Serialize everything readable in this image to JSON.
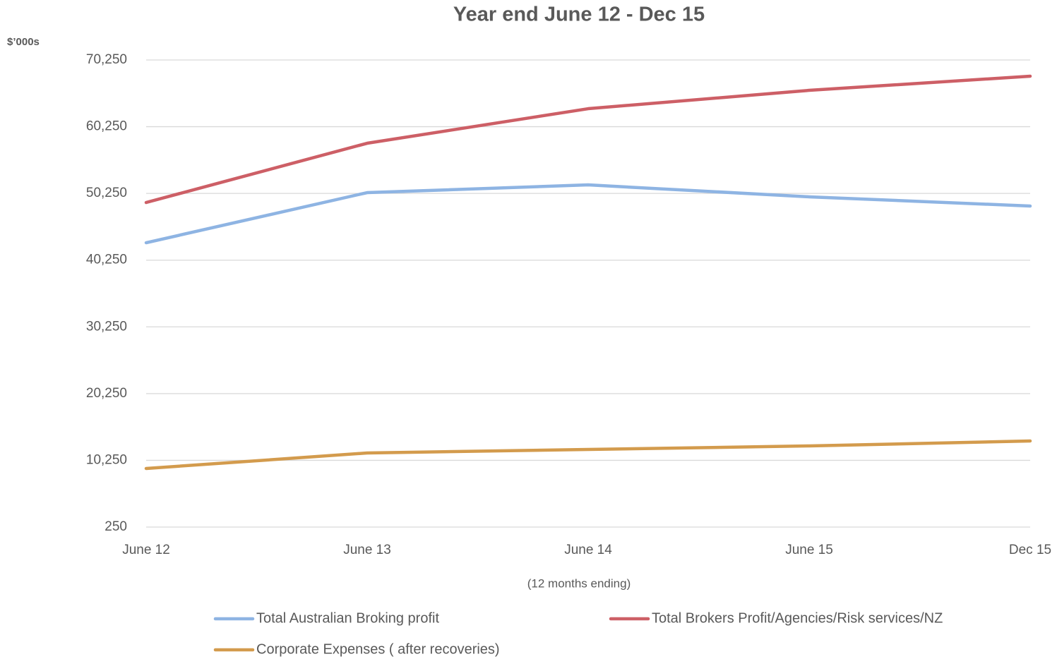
{
  "chart_data": {
    "type": "line",
    "title": "Year end June 12  - Dec 15",
    "y_label": "$’000s",
    "x_label": "(12 months ending)",
    "categories": [
      "June 12",
      "June 13",
      "June 14",
      "June 15",
      "Dec 15"
    ],
    "series": [
      {
        "name": "Total Australian Broking profit",
        "color": "#8eb4e3",
        "values": [
          42860,
          50370,
          51530,
          49740,
          48360
        ]
      },
      {
        "name": "Total Brokers Profit/Agencies/Risk services/NZ",
        "color": "#cd5f66",
        "values": [
          48890,
          57770,
          62950,
          65700,
          67820
        ]
      },
      {
        "name": "Corporate Expenses ( after recoveries)",
        "color": "#d39b4d",
        "values": [
          9030,
          11350,
          11880,
          12410,
          13150
        ]
      }
    ],
    "ylim": [
      250,
      70250
    ],
    "yticks": [
      250,
      {
        "value": 10250,
        "label": "10,250"
      },
      {
        "value": 20250,
        "label": "20,250"
      },
      {
        "value": 30250,
        "label": "30,250"
      },
      {
        "value": 40250,
        "label": "40,250"
      },
      {
        "value": 50250,
        "label": "50,250"
      },
      {
        "value": 60250,
        "label": "60,250"
      },
      {
        "value": 70250,
        "label": "70,250"
      }
    ],
    "grid": true
  }
}
